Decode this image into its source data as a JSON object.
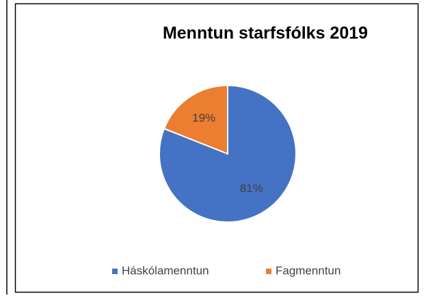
{
  "chart_data": {
    "type": "pie",
    "title": "Menntun starfsfólks 2019",
    "categories": [
      "Háskólamenntun",
      "Fagmenntun"
    ],
    "values": [
      81,
      19
    ],
    "value_labels": [
      "81%",
      "19%"
    ],
    "colors": [
      "#4472c4",
      "#ed7d31"
    ],
    "legend": "bottom"
  }
}
